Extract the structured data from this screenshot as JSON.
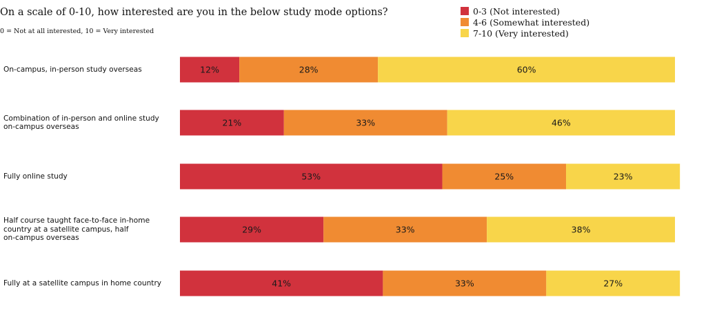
{
  "chart_data": {
    "type": "bar",
    "orientation": "horizontal",
    "stacked": true,
    "title": "On a scale of 0-10, how interested are you in the below study mode options?",
    "subtitle": "0 = Not at all interested, 10 = Very interested",
    "legend_position": "top-right",
    "categories": [
      "On-campus, in-person study overseas",
      "Combination of in-person and online study on-campus overseas",
      "Fully online study",
      "Half course taught face-to-face in-home country at a satellite campus, half on-campus overseas",
      "Fully at a satellite campus in home country"
    ],
    "series": [
      {
        "name": "0-3 (Not interested)",
        "color": "#d1323d",
        "values": [
          12,
          21,
          53,
          29,
          41
        ]
      },
      {
        "name": "4-6 (Somewhat interested)",
        "color": "#f08b32",
        "values": [
          28,
          33,
          25,
          33,
          33
        ]
      },
      {
        "name": "7-10 (Very interested)",
        "color": "#f8d54a",
        "values": [
          60,
          46,
          23,
          38,
          27
        ]
      }
    ],
    "xlim": [
      0,
      101
    ],
    "grid": false
  }
}
